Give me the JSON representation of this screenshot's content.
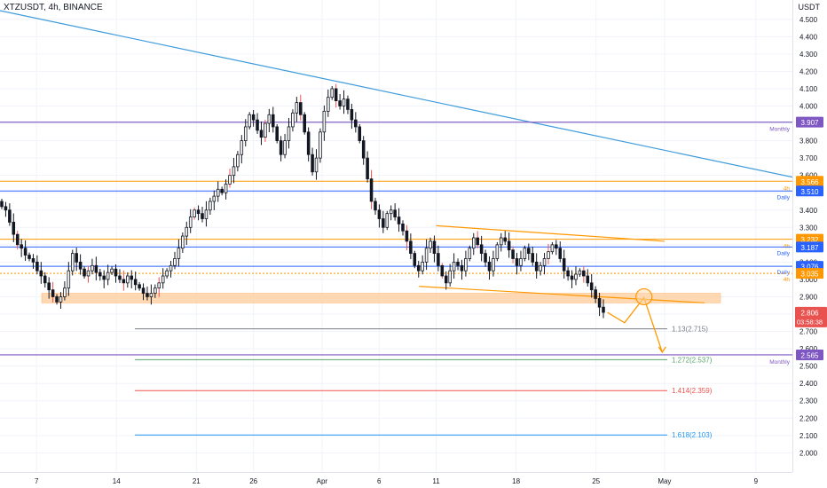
{
  "header": {
    "title": "XTZUSDT, 4h, BINANCE",
    "currency": "USDT"
  },
  "colors": {
    "up": "#26a69a",
    "down": "#ef5350",
    "candle": "#131722",
    "trend": "#3d9bdb",
    "monthly": "#7e57c2",
    "daily": "#2962ff",
    "h4": "#ff9800",
    "zone": "#ffcc99",
    "price": "#e8524f",
    "fib113": "#787b86",
    "fib1272": "#5aa469",
    "fib1414": "#ef5350",
    "fib1618": "#2196f3"
  },
  "chart_data": {
    "type": "candlestick",
    "symbol": "XTZUSDT",
    "interval": "4h",
    "exchange": "BINANCE",
    "ylim": [
      1.92,
      4.55
    ],
    "y_ticks": [
      "4.500",
      "4.400",
      "4.300",
      "4.200",
      "4.100",
      "4.000",
      "3.900",
      "3.800",
      "3.700",
      "3.600",
      "3.500",
      "3.400",
      "3.300",
      "3.200",
      "3.100",
      "3.000",
      "2.900",
      "2.800",
      "2.700",
      "2.600",
      "2.500",
      "2.400",
      "2.300",
      "2.200",
      "2.100",
      "2.000"
    ],
    "x_ticks": [
      {
        "label": "7",
        "day": 7
      },
      {
        "label": "14",
        "day": 14
      },
      {
        "label": "21",
        "day": 21
      },
      {
        "label": "26",
        "day": 26
      },
      {
        "label": "Apr",
        "day": 32
      },
      {
        "label": "6",
        "day": 37
      },
      {
        "label": "11",
        "day": 42
      },
      {
        "label": "18",
        "day": 49
      },
      {
        "label": "25",
        "day": 56
      },
      {
        "label": "May",
        "day": 62
      },
      {
        "label": "9",
        "day": 70
      }
    ],
    "x_range_days": [
      3.8,
      73.2
    ],
    "closes": [
      3.42,
      3.4,
      3.33,
      3.26,
      3.2,
      3.18,
      3.14,
      3.12,
      3.1,
      3.05,
      3.02,
      2.98,
      2.94,
      2.9,
      2.87,
      2.9,
      2.95,
      3.05,
      3.15,
      3.1,
      3.06,
      3.02,
      3.05,
      3.08,
      3.04,
      3.02,
      3.0,
      3.04,
      3.06,
      3.02,
      3.0,
      2.98,
      3.02,
      3.0,
      2.97,
      2.95,
      2.92,
      2.9,
      2.92,
      2.95,
      2.98,
      3.02,
      3.05,
      3.08,
      3.12,
      3.18,
      3.25,
      3.3,
      3.36,
      3.4,
      3.38,
      3.35,
      3.4,
      3.45,
      3.48,
      3.52,
      3.5,
      3.55,
      3.6,
      3.65,
      3.72,
      3.8,
      3.88,
      3.95,
      3.92,
      3.86,
      3.82,
      3.9,
      3.95,
      3.88,
      3.8,
      3.72,
      3.8,
      3.88,
      3.96,
      4.02,
      3.95,
      3.85,
      3.72,
      3.62,
      3.7,
      3.85,
      3.97,
      4.05,
      4.1,
      4.03,
      4.0,
      4.04,
      3.98,
      3.92,
      3.88,
      3.8,
      3.7,
      3.58,
      3.45,
      3.4,
      3.35,
      3.3,
      3.38,
      3.4,
      3.36,
      3.32,
      3.28,
      3.22,
      3.15,
      3.08,
      3.05,
      3.1,
      3.18,
      3.22,
      3.15,
      3.08,
      3.02,
      2.98,
      3.05,
      3.1,
      3.08,
      3.05,
      3.12,
      3.18,
      3.24,
      3.2,
      3.15,
      3.1,
      3.05,
      3.12,
      3.2,
      3.24,
      3.22,
      3.17,
      3.12,
      3.08,
      3.12,
      3.18,
      3.15,
      3.1,
      3.05,
      3.08,
      3.12,
      3.16,
      3.2,
      3.18,
      3.12,
      3.05,
      3.02,
      3.0,
      3.03,
      3.05,
      3.02,
      2.98,
      2.94,
      2.89,
      2.84,
      2.81
    ],
    "levels": [
      {
        "price": 3.907,
        "label": "3.907",
        "tag": "Monthly",
        "role": "monthly"
      },
      {
        "price": 3.566,
        "label": "3.566",
        "tag": "4h",
        "role": "h4"
      },
      {
        "price": 3.51,
        "label": "3.510",
        "tag": "Daily",
        "role": "daily"
      },
      {
        "price": 3.232,
        "label": "3.232",
        "tag": "4h",
        "role": "h4"
      },
      {
        "price": 3.187,
        "label": "3.187",
        "tag": "Daily",
        "role": "daily"
      },
      {
        "price": 3.076,
        "label": "3.076",
        "tag": "Daily",
        "role": "daily"
      },
      {
        "price": 3.035,
        "label": "3.035",
        "tag": "4h",
        "role": "h4"
      },
      {
        "price": 2.565,
        "label": "2.565",
        "tag": "Monthly",
        "role": "monthly"
      }
    ],
    "current_price": {
      "price": 2.806,
      "label": "2.806",
      "countdown": "03:58:38"
    },
    "fib_levels": [
      {
        "price": 2.715,
        "label": "1.13(2.715)",
        "role": "fib113"
      },
      {
        "price": 2.537,
        "label": "1.272(2.537)",
        "role": "fib1272"
      },
      {
        "price": 2.359,
        "label": "1.414(2.359)",
        "role": "fib1414"
      },
      {
        "price": 2.103,
        "label": "1.618(2.103)",
        "role": "fib1618"
      }
    ],
    "support_zone": [
      2.865,
      2.92
    ],
    "trendline": [
      {
        "day": 3.8,
        "price": 4.55
      },
      {
        "day": 73.2,
        "price": 3.59
      }
    ],
    "channel_upper": [
      {
        "day": 42,
        "price": 3.31
      },
      {
        "day": 62,
        "price": 3.22
      }
    ],
    "channel_lower": [
      {
        "day": 40.5,
        "price": 2.96
      },
      {
        "day": 65.5,
        "price": 2.865
      }
    ],
    "projection": [
      {
        "day": 57,
        "price": 2.81
      },
      {
        "day": 58.5,
        "price": 2.75
      },
      {
        "day": 60.2,
        "price": 2.895
      },
      {
        "day": 61.8,
        "price": 2.58
      }
    ]
  }
}
